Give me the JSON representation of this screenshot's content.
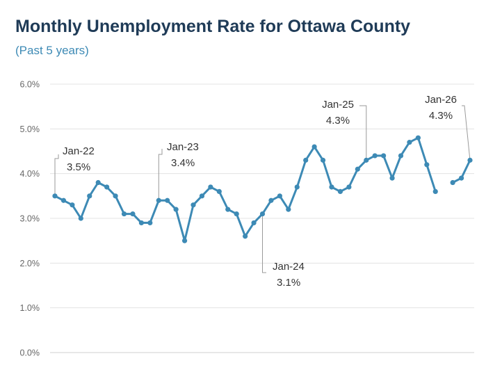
{
  "chart_data": {
    "type": "line",
    "title": "Monthly Unemployment Rate for Ottawa County",
    "subtitle": "(Past 5 years)",
    "xlabel": "",
    "ylabel": "",
    "ylim": [
      0,
      6
    ],
    "yticks": [
      "0.0%",
      "1.0%",
      "2.0%",
      "3.0%",
      "4.0%",
      "5.0%",
      "6.0%"
    ],
    "grid": "horizontal",
    "color": "#3d8ab5",
    "series": [
      {
        "values": [
          3.5,
          3.4,
          3.3,
          3.0,
          3.5,
          3.8,
          3.7,
          3.5,
          3.1,
          3.1,
          2.9,
          2.9,
          3.4,
          3.4,
          3.2,
          2.5,
          3.3,
          3.5,
          3.7,
          3.6,
          3.2,
          3.1,
          2.6,
          2.9,
          3.1,
          3.4,
          3.5,
          3.2,
          3.7,
          4.3,
          4.6,
          4.3,
          3.7,
          3.6,
          3.7,
          4.1,
          4.3,
          4.4,
          4.4,
          3.9,
          4.4,
          4.7,
          4.8,
          4.2,
          3.6,
          null,
          3.8,
          3.9,
          4.3
        ]
      }
    ],
    "annotations": [
      {
        "index": 0,
        "label": "Jan-22",
        "value": "3.5%"
      },
      {
        "index": 12,
        "label": "Jan-23",
        "value": "3.4%"
      },
      {
        "index": 24,
        "label": "Jan-24",
        "value": "3.1%"
      },
      {
        "index": 36,
        "label": "Jan-25",
        "value": "4.3%"
      },
      {
        "index": 48,
        "label": "Jan-26",
        "value": "4.3%"
      }
    ]
  }
}
